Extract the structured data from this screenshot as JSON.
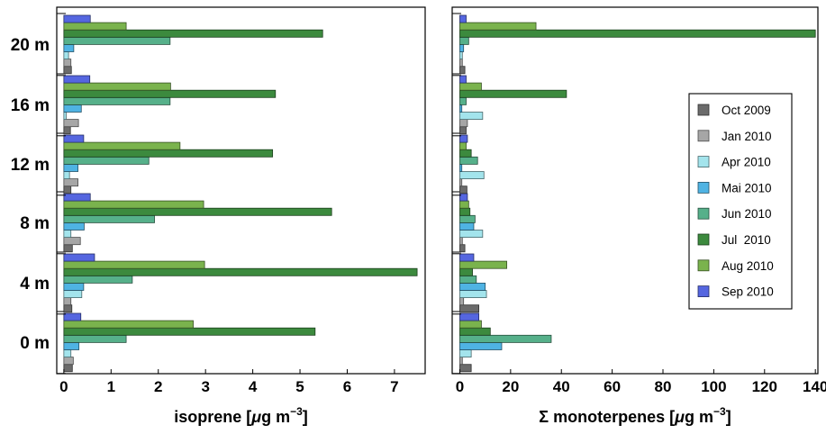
{
  "chart_data": {
    "type": "bar",
    "orientation": "horizontal",
    "categories": [
      "0 m",
      "4 m",
      "8 m",
      "12 m",
      "16 m",
      "20 m"
    ],
    "series_meta": [
      {
        "name": "Oct 2009",
        "color": "#6b6b6b"
      },
      {
        "name": "Jan 2010",
        "color": "#a6a6a6"
      },
      {
        "name": "Apr 2010",
        "color": "#a3e4ec"
      },
      {
        "name": "Mai 2010",
        "color": "#4fb3e3"
      },
      {
        "name": "Jun 2010",
        "color": "#56b08a"
      },
      {
        "name": "Jul  2010",
        "color": "#3c8a3e"
      },
      {
        "name": "Aug 2010",
        "color": "#7ab34d"
      },
      {
        "name": "Sep 2010",
        "color": "#5566e0"
      }
    ],
    "panels": [
      {
        "xlabel": "isoprene [μg m⁻³]",
        "xlim": [
          -0.15,
          7.65
        ],
        "xticks": [
          "0",
          "1",
          "2",
          "3",
          "4",
          "5",
          "6",
          "7"
        ],
        "series": [
          {
            "name": "Oct 2009",
            "values": [
              0.18,
              0.17,
              0.18,
              0.15,
              0.14,
              0.16
            ]
          },
          {
            "name": "Jan 2010",
            "values": [
              0.2,
              0.15,
              0.35,
              0.3,
              0.31,
              0.15
            ]
          },
          {
            "name": "Apr 2010",
            "values": [
              0.15,
              0.38,
              0.15,
              0.12,
              0.05,
              0.1
            ]
          },
          {
            "name": "Mai 2010",
            "values": [
              0.32,
              0.42,
              0.43,
              0.3,
              0.37,
              0.21
            ]
          },
          {
            "name": "Jun 2010",
            "values": [
              1.32,
              1.45,
              1.92,
              1.8,
              2.25,
              2.25
            ]
          },
          {
            "name": "Jul  2010",
            "values": [
              5.32,
              7.48,
              5.67,
              4.42,
              4.48,
              5.48
            ]
          },
          {
            "name": "Aug 2010",
            "values": [
              2.74,
              2.98,
              2.96,
              2.46,
              2.26,
              1.32
            ]
          },
          {
            "name": "Sep 2010",
            "values": [
              0.36,
              0.65,
              0.56,
              0.42,
              0.55,
              0.56
            ]
          }
        ]
      },
      {
        "xlabel": "Σ monoterpenes [μg m⁻³]",
        "xlim": [
          -3,
          141
        ],
        "xticks": [
          "0",
          "20",
          "40",
          "60",
          "80",
          "100",
          "120",
          "140"
        ],
        "series": [
          {
            "name": "Oct 2009",
            "values": [
              4.5,
              7.5,
              2.0,
              2.8,
              2.5,
              2.0
            ]
          },
          {
            "name": "Jan 2010",
            "values": [
              1.0,
              1.5,
              1.0,
              0.8,
              3.0,
              1.0
            ]
          },
          {
            "name": "Apr 2010",
            "values": [
              4.5,
              10.5,
              9.0,
              9.5,
              9.0,
              1.0
            ]
          },
          {
            "name": "Mai 2010",
            "values": [
              16.5,
              10.0,
              5.5,
              0.8,
              0.8,
              1.5
            ]
          },
          {
            "name": "Jun 2010",
            "values": [
              36.0,
              6.5,
              6.0,
              7.0,
              2.5,
              3.5
            ]
          },
          {
            "name": "Jul  2010",
            "values": [
              12.0,
              5.0,
              4.0,
              4.5,
              42.0,
              140.0
            ]
          },
          {
            "name": "Aug 2010",
            "values": [
              8.5,
              18.5,
              3.5,
              2.5,
              8.5,
              30.0
            ]
          },
          {
            "name": "Sep 2010",
            "values": [
              7.5,
              5.5,
              3.0,
              3.0,
              2.5,
              2.5
            ]
          }
        ]
      }
    ],
    "legend": {
      "placement": "right, inside right panel",
      "entries": [
        "Oct 2009",
        "Jan 2010",
        "Apr 2010",
        "Mai 2010",
        "Jun 2010",
        "Jul  2010",
        "Aug 2010",
        "Sep 2010"
      ]
    }
  }
}
